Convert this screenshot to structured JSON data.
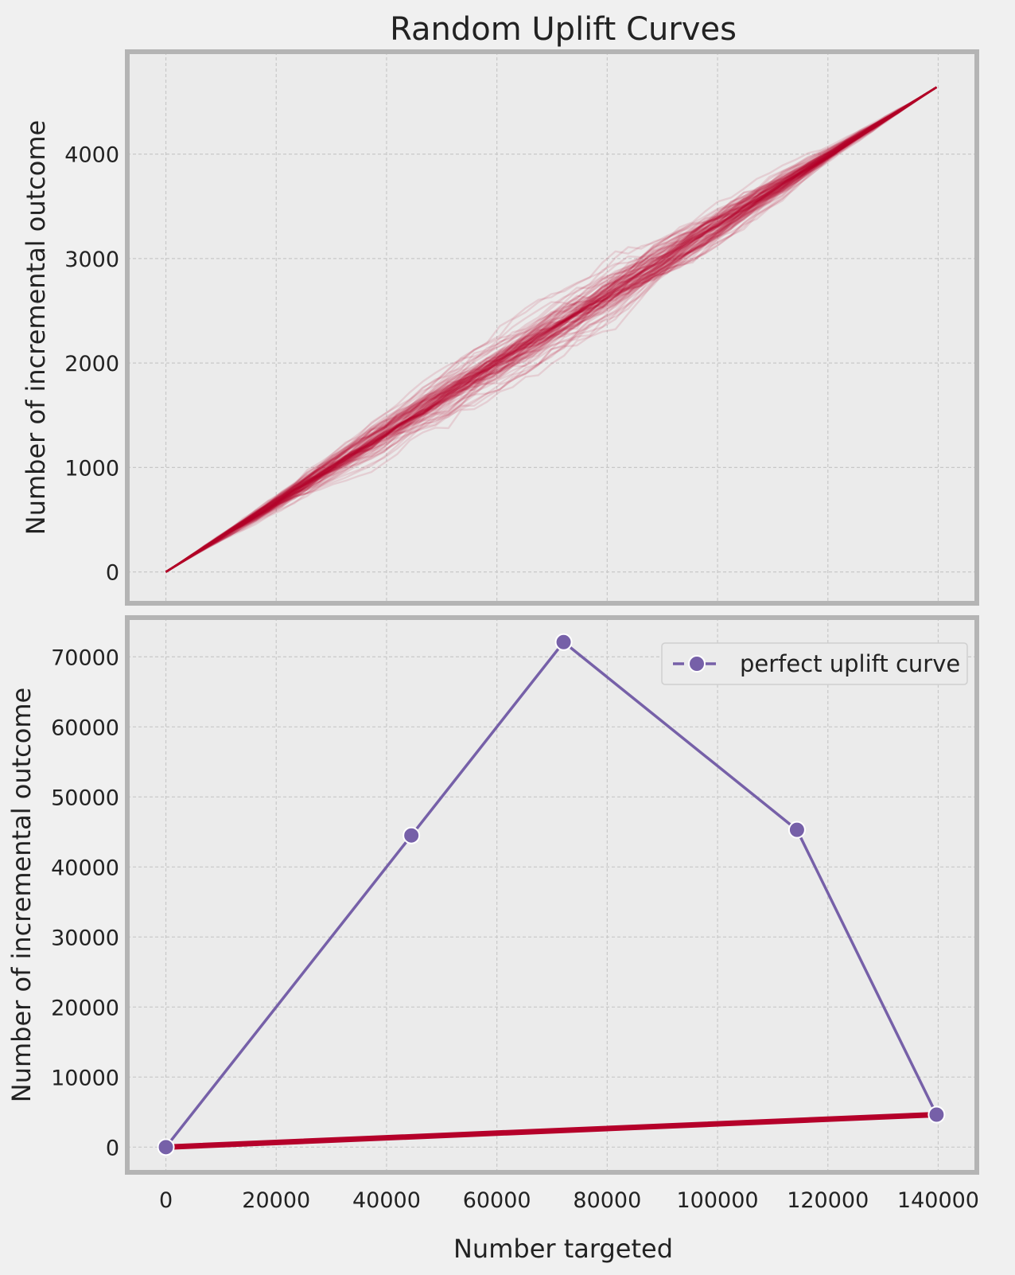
{
  "chart_data": [
    {
      "type": "line",
      "title": "Random Uplift Curves",
      "ylabel": "Number of incremental outcome",
      "xlabel": "",
      "xlim": [
        -7000,
        147000
      ],
      "ylim": [
        -300,
        4980
      ],
      "xticks": [
        0,
        20000,
        40000,
        60000,
        80000,
        100000,
        120000,
        140000
      ],
      "yticks": [
        0,
        1000,
        2000,
        3000,
        4000
      ],
      "ytick_labels": [
        "0",
        "1000",
        "2000",
        "3000",
        "4000"
      ],
      "grid": true,
      "curve_count": 100,
      "start": [
        0,
        0
      ],
      "end": [
        139700,
        4640
      ],
      "color": "#b5002a"
    },
    {
      "type": "line",
      "ylabel": "Number of incremental outcome",
      "xlabel": "Number targeted",
      "xlim": [
        -7000,
        147000
      ],
      "ylim": [
        -3600,
        75600
      ],
      "xticks": [
        0,
        20000,
        40000,
        60000,
        80000,
        100000,
        120000,
        140000
      ],
      "xtick_labels": [
        "0",
        "20000",
        "40000",
        "60000",
        "80000",
        "100000",
        "120000",
        "140000"
      ],
      "yticks": [
        0,
        10000,
        20000,
        30000,
        40000,
        50000,
        60000,
        70000
      ],
      "ytick_labels": [
        "0",
        "10000",
        "20000",
        "30000",
        "40000",
        "50000",
        "60000",
        "70000"
      ],
      "grid": true,
      "legend_position": "top-right",
      "series": [
        {
          "name": "perfect uplift curve",
          "color": "#7660a8",
          "x": [
            0,
            44500,
            72100,
            114400,
            139700
          ],
          "y": [
            0,
            44500,
            72100,
            45300,
            4640
          ]
        },
        {
          "color": "#b5002a",
          "x": [
            0,
            139700
          ],
          "y": [
            0,
            4640
          ]
        }
      ]
    }
  ]
}
